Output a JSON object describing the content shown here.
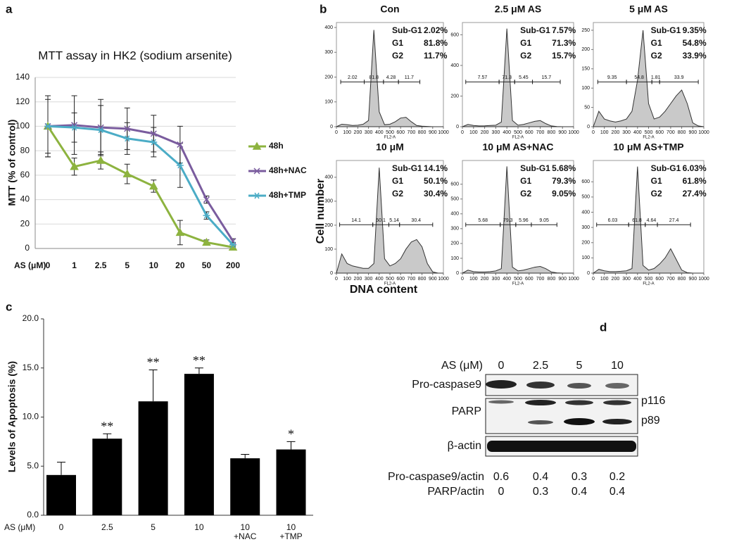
{
  "chart_data": [
    {
      "type": "line",
      "panel": "a",
      "title": "MTT assay in HK2 (sodium arsenite)",
      "y_label": "MTT (% of control)",
      "x_label": "AS (μM)",
      "categories": [
        "0",
        "1",
        "2.5",
        "5",
        "10",
        "20",
        "50",
        "200"
      ],
      "ylim": [
        0,
        140
      ],
      "yticks": [
        0,
        20,
        40,
        60,
        80,
        100,
        120,
        140
      ],
      "grid": true,
      "series": [
        {
          "name": "48h",
          "color": "#8db33f",
          "marker": "triangle",
          "values": [
            100,
            67,
            72,
            61,
            51,
            13,
            5,
            1
          ],
          "errors": [
            25,
            7,
            7,
            8,
            5,
            10,
            2,
            1
          ]
        },
        {
          "name": "48h+NAC",
          "color": "#7a5c9e",
          "marker": "cross",
          "values": [
            100,
            101,
            99,
            98,
            94,
            85,
            40,
            6
          ],
          "errors": [
            25,
            24,
            23,
            17,
            15,
            15,
            3,
            2
          ]
        },
        {
          "name": "48h+TMP",
          "color": "#4bacc6",
          "marker": "star",
          "values": [
            100,
            99,
            97,
            90,
            87,
            68,
            27,
            3
          ],
          "errors": [
            22,
            12,
            20,
            13,
            12,
            18,
            3,
            2
          ]
        }
      ]
    },
    {
      "type": "flow",
      "title": "Con",
      "x_label": "FL2-A",
      "xlim": [
        0,
        1000
      ],
      "xticks": [
        0,
        100,
        200,
        300,
        400,
        500,
        600,
        700,
        800,
        900,
        1000
      ],
      "ylim": [
        0,
        420
      ],
      "yticks": [
        0,
        100,
        200,
        300,
        400
      ],
      "x": [
        0,
        50,
        100,
        150,
        200,
        250,
        300,
        350,
        400,
        450,
        500,
        550,
        600,
        650,
        700,
        750,
        800,
        850,
        900,
        950,
        1000
      ],
      "values": [
        0,
        10,
        8,
        5,
        6,
        10,
        25,
        390,
        60,
        8,
        10,
        20,
        35,
        38,
        20,
        5,
        2,
        1,
        0,
        0,
        0
      ],
      "gates": [
        {
          "value": 2.02,
          "start": 40,
          "end": 260
        },
        {
          "value": 81.8,
          "start": 260,
          "end": 440
        },
        {
          "value": 4.28,
          "start": 440,
          "end": 580
        },
        {
          "value": 11.7,
          "start": 580,
          "end": 780
        }
      ],
      "stats": [
        {
          "name": "Sub-G1",
          "value": 2.02,
          "label": "2.02%"
        },
        {
          "name": "G1",
          "value": 81.8,
          "label": "81.8%"
        },
        {
          "name": "G2",
          "value": 11.7,
          "label": "11.7%"
        }
      ]
    },
    {
      "type": "flow",
      "title": "2.5 μM AS",
      "x_label": "FL2-A",
      "xlim": [
        0,
        1000
      ],
      "xticks": [
        0,
        100,
        200,
        300,
        400,
        500,
        600,
        700,
        800,
        900,
        1000
      ],
      "ylim": [
        0,
        680
      ],
      "yticks": [
        0,
        200,
        400,
        600
      ],
      "x": [
        0,
        50,
        100,
        150,
        200,
        250,
        300,
        350,
        400,
        450,
        500,
        550,
        600,
        650,
        700,
        750,
        800,
        850,
        900,
        950,
        1000
      ],
      "values": [
        0,
        15,
        8,
        5,
        6,
        8,
        10,
        30,
        640,
        40,
        10,
        15,
        25,
        35,
        40,
        20,
        5,
        1,
        0,
        0,
        0
      ],
      "gates": [
        {
          "value": 7.57,
          "start": 30,
          "end": 330
        },
        {
          "value": 71.3,
          "start": 330,
          "end": 470
        },
        {
          "value": 5.45,
          "start": 470,
          "end": 630
        },
        {
          "value": 15.7,
          "start": 630,
          "end": 880
        }
      ],
      "stats": [
        {
          "name": "Sub-G1",
          "value": 7.57,
          "label": "7.57%"
        },
        {
          "name": "G1",
          "value": 71.3,
          "label": "71.3%"
        },
        {
          "name": "G2",
          "value": 15.7,
          "label": "15.7%"
        }
      ]
    },
    {
      "type": "flow",
      "title": "5 μM AS",
      "x_label": "FL2-A",
      "xlim": [
        0,
        1000
      ],
      "xticks": [
        0,
        100,
        200,
        300,
        400,
        500,
        600,
        700,
        800,
        900,
        1000
      ],
      "ylim": [
        0,
        270
      ],
      "yticks": [
        0,
        50,
        100,
        150,
        200,
        250
      ],
      "x": [
        0,
        50,
        100,
        150,
        200,
        250,
        300,
        350,
        400,
        450,
        500,
        550,
        600,
        650,
        700,
        750,
        800,
        850,
        900,
        950,
        1000
      ],
      "values": [
        0,
        40,
        20,
        15,
        12,
        15,
        20,
        40,
        120,
        250,
        60,
        20,
        25,
        40,
        60,
        80,
        95,
        60,
        10,
        2,
        0
      ],
      "gates": [
        {
          "value": 9.35,
          "start": 40,
          "end": 300
        },
        {
          "value": 54.8,
          "start": 300,
          "end": 530
        },
        {
          "value": 1.81,
          "start": 530,
          "end": 600
        },
        {
          "value": 33.9,
          "start": 600,
          "end": 950
        }
      ],
      "stats": [
        {
          "name": "Sub-G1",
          "value": 9.35,
          "label": "9.35%"
        },
        {
          "name": "G1",
          "value": 54.8,
          "label": "54.8%"
        },
        {
          "name": "G2",
          "value": 33.9,
          "label": "33.9%"
        }
      ]
    },
    {
      "type": "flow",
      "title": "10 μM",
      "x_label": "FL2-A",
      "xlim": [
        0,
        1000
      ],
      "xticks": [
        0,
        100,
        200,
        300,
        400,
        500,
        600,
        700,
        800,
        900,
        1000
      ],
      "ylim": [
        0,
        470
      ],
      "yticks": [
        0,
        100,
        200,
        300,
        400
      ],
      "x": [
        0,
        50,
        100,
        150,
        200,
        250,
        300,
        350,
        400,
        450,
        500,
        550,
        600,
        650,
        700,
        750,
        800,
        850,
        900,
        950,
        1000
      ],
      "values": [
        0,
        80,
        40,
        30,
        25,
        20,
        20,
        40,
        440,
        60,
        30,
        40,
        60,
        100,
        130,
        140,
        110,
        40,
        5,
        0,
        0
      ],
      "gates": [
        {
          "value": 14.1,
          "start": 30,
          "end": 340
        },
        {
          "value": 50.1,
          "start": 340,
          "end": 490
        },
        {
          "value": 5.14,
          "start": 490,
          "end": 590
        },
        {
          "value": 30.4,
          "start": 590,
          "end": 900
        }
      ],
      "stats": [
        {
          "name": "Sub-G1",
          "value": 14.1,
          "label": "14.1%"
        },
        {
          "name": "G1",
          "value": 50.1,
          "label": "50.1%"
        },
        {
          "name": "G2",
          "value": 30.4,
          "label": "30.4%"
        }
      ]
    },
    {
      "type": "flow",
      "title": "10 μM AS+NAC",
      "x_label": "FL2-A",
      "xlim": [
        0,
        1000
      ],
      "xticks": [
        0,
        100,
        200,
        300,
        400,
        500,
        600,
        700,
        800,
        900,
        1000
      ],
      "ylim": [
        0,
        760
      ],
      "yticks": [
        0,
        100,
        200,
        300,
        400,
        500,
        600
      ],
      "x": [
        0,
        50,
        100,
        150,
        200,
        250,
        300,
        350,
        400,
        450,
        500,
        550,
        600,
        650,
        700,
        750,
        800,
        850,
        900,
        950,
        1000
      ],
      "values": [
        0,
        20,
        10,
        8,
        8,
        10,
        15,
        30,
        720,
        40,
        15,
        20,
        30,
        40,
        45,
        30,
        8,
        2,
        0,
        0,
        0
      ],
      "gates": [
        {
          "value": 5.68,
          "start": 30,
          "end": 340
        },
        {
          "value": 79.3,
          "start": 340,
          "end": 480
        },
        {
          "value": 5.96,
          "start": 480,
          "end": 620
        },
        {
          "value": 9.05,
          "start": 620,
          "end": 850
        }
      ],
      "stats": [
        {
          "name": "Sub-G1",
          "value": 5.68,
          "label": "5.68%"
        },
        {
          "name": "G1",
          "value": 79.3,
          "label": "79.3%"
        },
        {
          "name": "G2",
          "value": 9.05,
          "label": "9.05%"
        }
      ]
    },
    {
      "type": "flow",
      "title": "10 μM AS+TMP",
      "x_label": "FL2-A",
      "xlim": [
        0,
        1000
      ],
      "xticks": [
        0,
        100,
        200,
        300,
        400,
        500,
        600,
        700,
        800,
        900,
        1000
      ],
      "ylim": [
        0,
        740
      ],
      "yticks": [
        0,
        100,
        200,
        300,
        400,
        500,
        600
      ],
      "x": [
        0,
        50,
        100,
        150,
        200,
        250,
        300,
        350,
        400,
        450,
        500,
        550,
        600,
        650,
        700,
        750,
        800,
        850,
        900,
        950,
        1000
      ],
      "values": [
        0,
        25,
        15,
        10,
        10,
        12,
        15,
        30,
        700,
        50,
        20,
        30,
        60,
        100,
        160,
        90,
        20,
        3,
        0,
        0,
        0
      ],
      "gates": [
        {
          "value": 6.03,
          "start": 30,
          "end": 320
        },
        {
          "value": 61.8,
          "start": 320,
          "end": 470
        },
        {
          "value": 4.64,
          "start": 470,
          "end": 580
        },
        {
          "value": 27.4,
          "start": 580,
          "end": 880
        }
      ],
      "stats": [
        {
          "name": "Sub-G1",
          "value": 6.03,
          "label": "6.03%"
        },
        {
          "name": "G1",
          "value": 61.8,
          "label": "61.8%"
        },
        {
          "name": "G2",
          "value": 27.4,
          "label": "27.4%"
        }
      ]
    },
    {
      "type": "bar",
      "panel": "c",
      "y_label": "Levels of Apoptosis (%)",
      "x_label": "AS (μM)",
      "color": "#000000",
      "categories": [
        "0",
        "2.5",
        "5",
        "10",
        [
          "10",
          "+NAC"
        ],
        [
          "10",
          "+TMP"
        ]
      ],
      "values": [
        4.1,
        7.8,
        11.6,
        14.4,
        5.8,
        6.7
      ],
      "errors": [
        1.3,
        0.5,
        3.2,
        0.6,
        0.4,
        0.8
      ],
      "annotations": [
        null,
        "**",
        "**",
        "**",
        null,
        "*"
      ],
      "ylim": [
        0,
        20
      ],
      "yticks": [
        {
          "value": 0,
          "label": "0.0"
        },
        {
          "value": 5,
          "label": "5.0"
        },
        {
          "value": 10,
          "label": "10.0"
        },
        {
          "value": 15,
          "label": "15.0"
        },
        {
          "value": 20,
          "label": "20.0"
        }
      ]
    }
  ],
  "panel_b": {
    "panel": "b",
    "y_label": "Cell number",
    "x_label": "DNA content"
  },
  "blot": {
    "panel": "d",
    "header": "AS (μM)",
    "lanes": [
      "0",
      "2.5",
      "5",
      "10"
    ],
    "rows": [
      "Pro-caspase9",
      "PARP",
      "β-actin"
    ],
    "bands": [
      "p116",
      "p89"
    ],
    "quant": [
      {
        "name": "Pro-caspase9/actin",
        "values": [
          0.6,
          0.4,
          0.3,
          0.2
        ]
      },
      {
        "name": "PARP/actin",
        "values": [
          0,
          0.3,
          0.4,
          0.4
        ]
      }
    ]
  }
}
